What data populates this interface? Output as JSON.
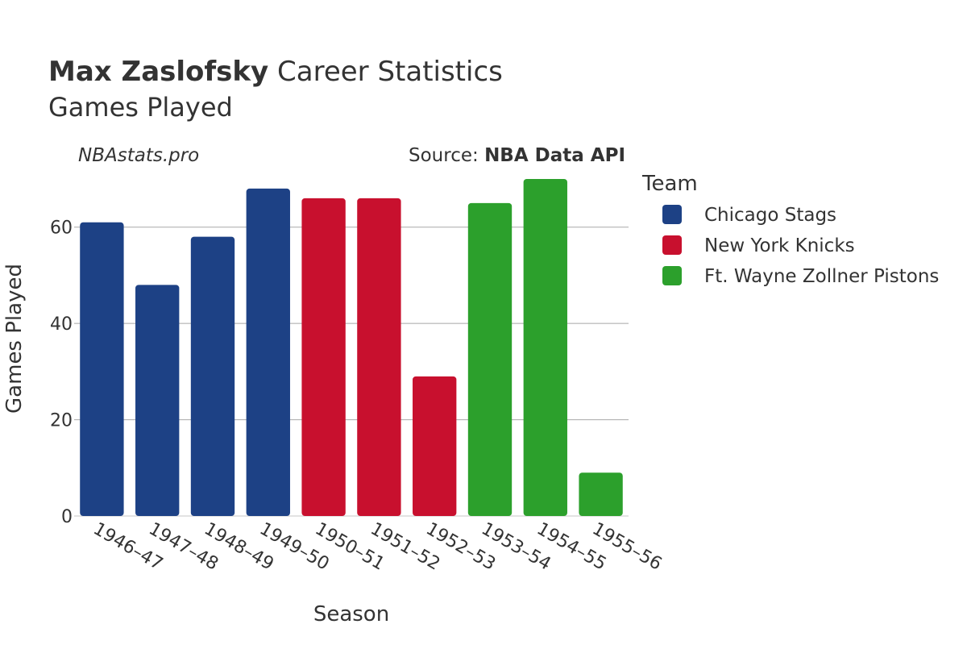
{
  "chart_data": {
    "type": "bar",
    "title_bold": "Max Zaslofsky",
    "title_rest": " Career Statistics",
    "subtitle": "Games Played",
    "watermark": "NBAstats.pro",
    "source_prefix": "Source: ",
    "source_bold": "NBA Data API",
    "xlabel": "Season",
    "ylabel": "Games Played",
    "ylim": [
      0,
      71
    ],
    "yticks": [
      0,
      20,
      40,
      60
    ],
    "grid": true,
    "legend_title": "Team",
    "legend_position": "right",
    "series": [
      {
        "name": "Chicago Stags",
        "color": "#1d4185"
      },
      {
        "name": "New York Knicks",
        "color": "#c8102e"
      },
      {
        "name": "Ft. Wayne Zollner Pistons",
        "color": "#2ca02c"
      }
    ],
    "categories": [
      "1946–47",
      "1947–48",
      "1948–49",
      "1949–50",
      "1950–51",
      "1951–52",
      "1952–53",
      "1953–54",
      "1954–55",
      "1955–56"
    ],
    "values": [
      61,
      48,
      58,
      68,
      66,
      66,
      29,
      65,
      70,
      9
    ],
    "team_index": [
      0,
      0,
      0,
      0,
      1,
      1,
      1,
      2,
      2,
      2
    ]
  }
}
